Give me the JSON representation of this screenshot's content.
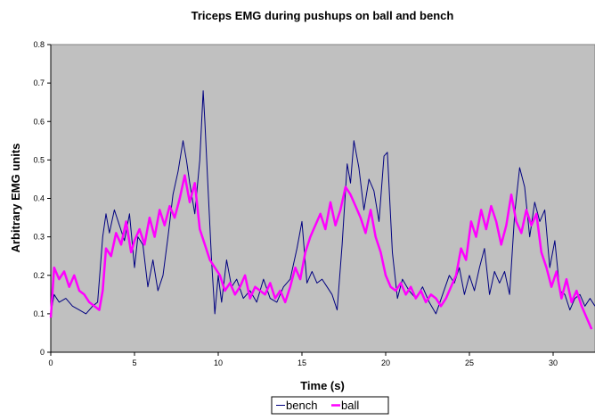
{
  "chart_data": {
    "type": "line",
    "title": "Triceps EMG during pushups on ball and bench",
    "xlabel": "Time (s)",
    "ylabel": "Arbitrary EMG units",
    "xlim": [
      0,
      32.5
    ],
    "ylim": [
      0,
      0.8
    ],
    "x_ticks": [
      0,
      5,
      10,
      15,
      20,
      25,
      30
    ],
    "y_ticks": [
      0,
      0.1,
      0.2,
      0.3,
      0.4,
      0.5,
      0.6,
      0.7,
      0.8
    ],
    "grid": false,
    "plot_background": "#c0c0c0",
    "legend_position": "bottom-center",
    "series": [
      {
        "name": "bench",
        "color": "#000080",
        "x": [
          0,
          0.2,
          0.5,
          0.9,
          1.3,
          1.7,
          2.1,
          2.5,
          2.8,
          3.1,
          3.3,
          3.5,
          3.8,
          4.1,
          4.4,
          4.7,
          5.0,
          5.2,
          5.5,
          5.8,
          6.1,
          6.4,
          6.7,
          7.0,
          7.3,
          7.6,
          7.9,
          8.1,
          8.3,
          8.6,
          8.9,
          9.1,
          9.2,
          9.4,
          9.6,
          9.8,
          10.0,
          10.2,
          10.5,
          10.8,
          11.1,
          11.5,
          11.9,
          12.3,
          12.7,
          13.1,
          13.5,
          13.9,
          14.3,
          14.7,
          15.0,
          15.3,
          15.6,
          15.9,
          16.2,
          16.5,
          16.8,
          17.1,
          17.4,
          17.7,
          17.9,
          18.1,
          18.4,
          18.7,
          19.0,
          19.3,
          19.6,
          19.9,
          20.1,
          20.4,
          20.7,
          21.0,
          21.4,
          21.8,
          22.2,
          22.6,
          23.0,
          23.4,
          23.8,
          24.1,
          24.4,
          24.7,
          25.0,
          25.3,
          25.6,
          25.9,
          26.2,
          26.5,
          26.8,
          27.1,
          27.4,
          27.7,
          28.0,
          28.3,
          28.6,
          28.9,
          29.2,
          29.5,
          29.8,
          30.1,
          30.4,
          30.7,
          31.0,
          31.3,
          31.6,
          31.9,
          32.2,
          32.5
        ],
        "values": [
          0.1,
          0.15,
          0.13,
          0.14,
          0.12,
          0.11,
          0.1,
          0.12,
          0.13,
          0.3,
          0.36,
          0.31,
          0.37,
          0.33,
          0.29,
          0.36,
          0.22,
          0.3,
          0.28,
          0.17,
          0.24,
          0.16,
          0.2,
          0.3,
          0.41,
          0.47,
          0.55,
          0.5,
          0.44,
          0.36,
          0.5,
          0.68,
          0.6,
          0.42,
          0.24,
          0.1,
          0.2,
          0.13,
          0.24,
          0.17,
          0.19,
          0.14,
          0.16,
          0.13,
          0.19,
          0.14,
          0.13,
          0.17,
          0.19,
          0.27,
          0.34,
          0.18,
          0.21,
          0.18,
          0.19,
          0.17,
          0.15,
          0.11,
          0.28,
          0.49,
          0.44,
          0.55,
          0.48,
          0.37,
          0.45,
          0.42,
          0.34,
          0.51,
          0.52,
          0.26,
          0.14,
          0.19,
          0.16,
          0.14,
          0.17,
          0.13,
          0.1,
          0.15,
          0.2,
          0.18,
          0.22,
          0.15,
          0.2,
          0.16,
          0.22,
          0.27,
          0.15,
          0.21,
          0.18,
          0.21,
          0.15,
          0.36,
          0.48,
          0.43,
          0.3,
          0.39,
          0.34,
          0.37,
          0.22,
          0.29,
          0.16,
          0.15,
          0.11,
          0.14,
          0.15,
          0.12,
          0.14,
          0.12
        ]
      },
      {
        "name": "ball",
        "color": "#ff00ff",
        "x": [
          0,
          0.2,
          0.5,
          0.8,
          1.1,
          1.4,
          1.7,
          2.0,
          2.3,
          2.6,
          2.9,
          3.1,
          3.3,
          3.6,
          3.9,
          4.2,
          4.5,
          4.8,
          5.0,
          5.3,
          5.6,
          5.9,
          6.2,
          6.5,
          6.8,
          7.1,
          7.4,
          7.7,
          8.0,
          8.3,
          8.6,
          8.9,
          9.2,
          9.5,
          9.8,
          10.1,
          10.4,
          10.7,
          11.0,
          11.3,
          11.6,
          11.9,
          12.2,
          12.5,
          12.8,
          13.1,
          13.4,
          13.7,
          14.0,
          14.3,
          14.6,
          14.9,
          15.2,
          15.5,
          15.8,
          16.1,
          16.4,
          16.7,
          17.0,
          17.3,
          17.6,
          17.9,
          18.2,
          18.5,
          18.8,
          19.1,
          19.4,
          19.7,
          20.0,
          20.3,
          20.6,
          20.9,
          21.2,
          21.5,
          21.8,
          22.1,
          22.4,
          22.7,
          23.0,
          23.3,
          23.6,
          23.9,
          24.2,
          24.5,
          24.8,
          25.1,
          25.4,
          25.7,
          26.0,
          26.3,
          26.6,
          26.9,
          27.2,
          27.5,
          27.8,
          28.1,
          28.4,
          28.7,
          29.0,
          29.3,
          29.6,
          29.9,
          30.2,
          30.5,
          30.8,
          31.1,
          31.4,
          31.7,
          32.0,
          32.3
        ],
        "values": [
          0.09,
          0.22,
          0.19,
          0.21,
          0.17,
          0.2,
          0.16,
          0.15,
          0.13,
          0.12,
          0.11,
          0.16,
          0.27,
          0.25,
          0.31,
          0.28,
          0.34,
          0.26,
          0.29,
          0.32,
          0.28,
          0.35,
          0.3,
          0.37,
          0.33,
          0.38,
          0.35,
          0.4,
          0.46,
          0.39,
          0.44,
          0.32,
          0.28,
          0.24,
          0.22,
          0.2,
          0.16,
          0.18,
          0.15,
          0.17,
          0.2,
          0.14,
          0.17,
          0.16,
          0.15,
          0.18,
          0.14,
          0.16,
          0.13,
          0.17,
          0.22,
          0.19,
          0.26,
          0.3,
          0.33,
          0.36,
          0.32,
          0.39,
          0.33,
          0.37,
          0.43,
          0.41,
          0.38,
          0.35,
          0.31,
          0.37,
          0.3,
          0.26,
          0.2,
          0.17,
          0.16,
          0.18,
          0.15,
          0.17,
          0.14,
          0.16,
          0.13,
          0.15,
          0.14,
          0.12,
          0.14,
          0.17,
          0.2,
          0.27,
          0.24,
          0.34,
          0.3,
          0.37,
          0.32,
          0.38,
          0.34,
          0.28,
          0.33,
          0.41,
          0.34,
          0.31,
          0.37,
          0.33,
          0.36,
          0.26,
          0.22,
          0.17,
          0.21,
          0.14,
          0.19,
          0.13,
          0.16,
          0.12,
          0.09,
          0.06
        ]
      }
    ]
  }
}
